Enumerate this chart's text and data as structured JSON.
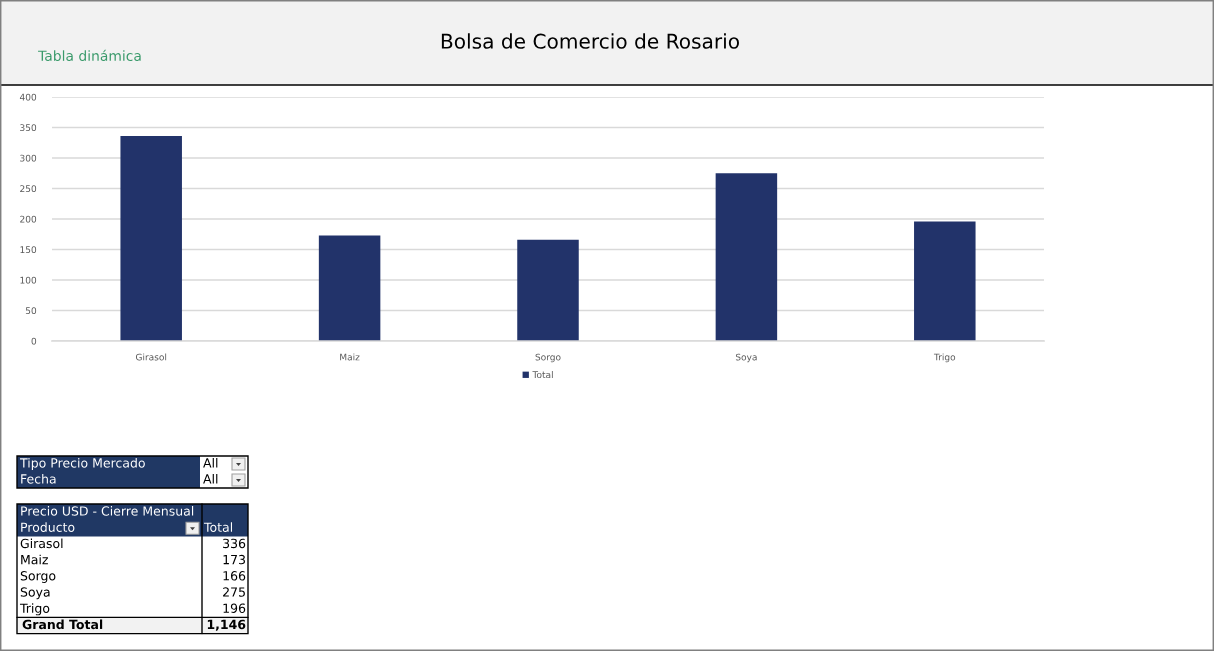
{
  "chart_data": {
    "type": "bar",
    "title": "Bolsa de Comercio de Rosario",
    "subtitle": "Tabla dinámica",
    "categories": [
      "Girasol",
      "Maiz",
      "Sorgo",
      "Soya",
      "Trigo"
    ],
    "series": [
      {
        "name": "Total",
        "color": "#22336a",
        "values": [
          336,
          173,
          166,
          275,
          196
        ]
      }
    ],
    "ylim": [
      0,
      400
    ],
    "yticks": [
      0,
      50,
      100,
      150,
      200,
      250,
      300,
      350,
      400
    ],
    "grid": "y",
    "legend": "bottom",
    "annotations": [
      "Tipo Precio Mercado",
      "All",
      "Fecha",
      "All",
      "Precio USD - Cierre Mensual",
      "Producto",
      "Total",
      "336",
      "173",
      "166",
      "275",
      "196",
      "Grand Total",
      "1,146"
    ]
  }
}
